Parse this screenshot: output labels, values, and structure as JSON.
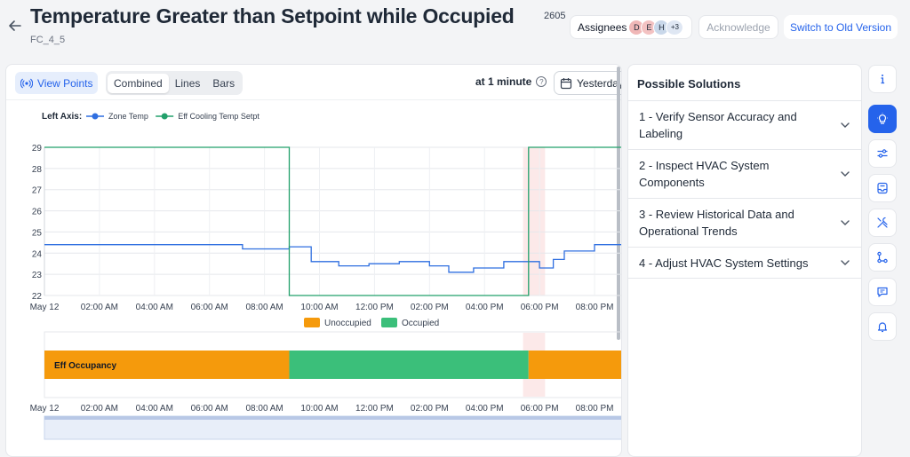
{
  "header": {
    "title": "Temperature Greater than Setpoint while Occupied",
    "count": "2605",
    "subtitle": "FC_4_5",
    "assignees_label": "Assignees",
    "avatars": [
      "D",
      "E",
      "H",
      "+3"
    ],
    "acknowledge_label": "Acknowledge",
    "switch_label": "Switch to Old Version"
  },
  "toolbar": {
    "view_points_label": "View Points",
    "modes": [
      "Combined",
      "Lines",
      "Bars"
    ],
    "active_mode": "Combined",
    "interval_label": "at 1 minute",
    "date_label": "Yesterday"
  },
  "chart_data": [
    {
      "type": "line",
      "axis_label": "Left Axis:",
      "y_ticks": [
        22,
        23,
        24,
        25,
        26,
        27,
        28,
        29
      ],
      "ylim": [
        22,
        29
      ],
      "x_ticks": [
        "May 12",
        "02:00 AM",
        "04:00 AM",
        "06:00 AM",
        "08:00 AM",
        "10:00 AM",
        "12:00 PM",
        "02:00 PM",
        "04:00 PM",
        "06:00 PM",
        "08:00 PM"
      ],
      "x_range_hours": [
        0,
        21
      ],
      "highlight_hours": [
        17.4,
        18.2
      ],
      "series": [
        {
          "name": "Zone Temp",
          "color": "#2f6fe0",
          "points": [
            [
              0,
              24.4
            ],
            [
              7.2,
              24.4
            ],
            [
              7.2,
              24.2
            ],
            [
              8.9,
              24.2
            ],
            [
              8.9,
              24.3
            ],
            [
              9.7,
              24.3
            ],
            [
              9.7,
              23.6
            ],
            [
              10.7,
              23.6
            ],
            [
              10.7,
              23.4
            ],
            [
              11.8,
              23.4
            ],
            [
              11.8,
              23.5
            ],
            [
              12.9,
              23.5
            ],
            [
              12.9,
              23.6
            ],
            [
              14.0,
              23.6
            ],
            [
              14.0,
              23.4
            ],
            [
              14.7,
              23.4
            ],
            [
              14.7,
              23.1
            ],
            [
              15.6,
              23.1
            ],
            [
              15.6,
              23.3
            ],
            [
              16.7,
              23.3
            ],
            [
              16.7,
              23.6
            ],
            [
              17.6,
              23.6
            ],
            [
              17.6,
              23.6
            ],
            [
              18.0,
              23.6
            ],
            [
              18.0,
              23.3
            ],
            [
              18.5,
              23.3
            ],
            [
              18.5,
              23.7
            ],
            [
              18.9,
              23.7
            ],
            [
              18.9,
              24.1
            ],
            [
              20.0,
              24.1
            ],
            [
              20.0,
              24.4
            ],
            [
              21,
              24.4
            ]
          ]
        },
        {
          "name": "Eff Cooling Temp Setpt",
          "color": "#22a06b",
          "points": [
            [
              0,
              29
            ],
            [
              8.9,
              29
            ],
            [
              8.9,
              22
            ],
            [
              17.6,
              22
            ],
            [
              17.6,
              29
            ],
            [
              21,
              29
            ]
          ]
        }
      ]
    },
    {
      "type": "bar",
      "series_label": "Eff Occupancy",
      "legend": [
        {
          "name": "Unoccupied",
          "color": "#f59a0c"
        },
        {
          "name": "Occupied",
          "color": "#3bbf7a"
        }
      ],
      "segments": [
        {
          "state": "Unoccupied",
          "start_hours": 0,
          "end_hours": 8.9
        },
        {
          "state": "Occupied",
          "start_hours": 8.9,
          "end_hours": 17.6
        },
        {
          "state": "Unoccupied",
          "start_hours": 17.6,
          "end_hours": 21
        }
      ],
      "x_ticks": [
        "May 12",
        "02:00 AM",
        "04:00 AM",
        "06:00 AM",
        "08:00 AM",
        "10:00 AM",
        "12:00 PM",
        "02:00 PM",
        "04:00 PM",
        "06:00 PM",
        "08:00 PM"
      ]
    }
  ],
  "solutions": {
    "title": "Possible Solutions",
    "items": [
      {
        "label": "1 - Verify Sensor Accuracy and Labeling"
      },
      {
        "label": "2 - Inspect HVAC System Components"
      },
      {
        "label": "3 - Review Historical Data and Operational Trends"
      },
      {
        "label": "4 - Adjust HVAC System Settings"
      }
    ]
  },
  "rail": {
    "icons": [
      "info-icon",
      "lightbulb-icon",
      "sliders-icon",
      "inbox-icon",
      "tools-icon",
      "workflow-icon",
      "chat-icon",
      "bell-icon"
    ],
    "active": "lightbulb-icon"
  }
}
